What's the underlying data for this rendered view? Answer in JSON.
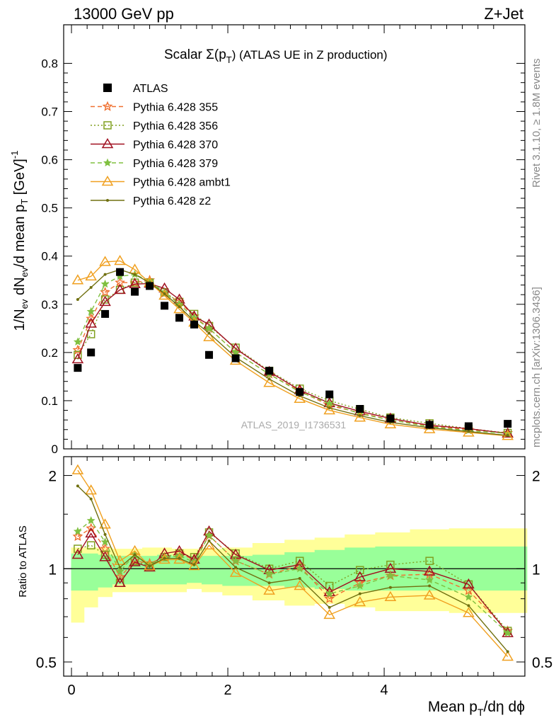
{
  "header": {
    "left": "13000 GeV pp",
    "right": "Z+Jet"
  },
  "title": {
    "main": "Scalar Σ(p",
    "sub": "T",
    "rest": ") (ATLAS UE in Z production)"
  },
  "side_text": {
    "rivet": "Rivet 3.1.10, ≥ 1.8M events",
    "mcplots": "mcplots.cern.ch [arXiv:1306.3436]"
  },
  "watermark": "ATLAS_2019_I1736531",
  "axes": {
    "ylabel_main": "1/N_ev dN_ev/d mean p_T [GeV]^-1",
    "ylabel_ratio": "Ratio to ATLAS",
    "xlabel": "Mean p_T/dη dϕ",
    "main_yticks": [
      "0",
      "0.1",
      "0.2",
      "0.3",
      "0.4",
      "0.5",
      "0.6",
      "0.7",
      "0.8"
    ],
    "ratio_yticks": [
      "0.5",
      "1",
      "2"
    ],
    "xticks": [
      "0",
      "2",
      "4"
    ]
  },
  "legend": [
    {
      "label": "ATLAS",
      "color": "#000000",
      "marker": "square-filled"
    },
    {
      "label": "Pythia 6.428 355",
      "color": "#f07030",
      "marker": "star-open",
      "dash": "dashed"
    },
    {
      "label": "Pythia 6.428 356",
      "color": "#80a020",
      "marker": "square-open",
      "dash": "dotted"
    },
    {
      "label": "Pythia 6.428 370",
      "color": "#a01020",
      "marker": "triangle-open",
      "dash": "solid"
    },
    {
      "label": "Pythia 6.428 379",
      "color": "#80c040",
      "marker": "star-filled",
      "dash": "dashed"
    },
    {
      "label": "Pythia 6.428 ambt1",
      "color": "#f0a020",
      "marker": "triangle-open",
      "dash": "solid"
    },
    {
      "label": "Pythia 6.428 z2",
      "color": "#707010",
      "marker": "dot",
      "dash": "solid"
    }
  ],
  "chart_data": {
    "type": "line",
    "x": [
      0.08,
      0.25,
      0.43,
      0.62,
      0.81,
      1.0,
      1.19,
      1.38,
      1.57,
      1.76,
      2.1,
      2.53,
      2.92,
      3.3,
      3.69,
      4.08,
      4.58,
      5.08,
      5.58
    ],
    "xlim": [
      -0.1,
      5.8
    ],
    "ylim_main": [
      0,
      0.88
    ],
    "ylim_ratio": [
      0.45,
      2.3
    ],
    "ratio_scale": "log",
    "data": {
      "name": "ATLAS",
      "values": [
        0.168,
        0.2,
        0.28,
        0.367,
        0.326,
        0.338,
        0.297,
        0.272,
        0.258,
        0.195,
        0.188,
        0.162,
        0.118,
        0.113,
        0.083,
        0.063,
        0.05,
        0.047,
        0.052
      ]
    },
    "series": [
      {
        "name": "Pythia 6.428 355",
        "values": [
          0.205,
          0.27,
          0.325,
          0.345,
          0.345,
          0.35,
          0.323,
          0.305,
          0.275,
          0.25,
          0.2,
          0.155,
          0.12,
          0.09,
          0.075,
          0.06,
          0.048,
          0.04,
          0.033
        ]
      },
      {
        "name": "Pythia 6.428 356",
        "values": [
          0.195,
          0.238,
          0.31,
          0.33,
          0.345,
          0.345,
          0.325,
          0.305,
          0.28,
          0.255,
          0.21,
          0.162,
          0.125,
          0.1,
          0.082,
          0.065,
          0.053,
          0.042,
          0.033
        ]
      },
      {
        "name": "Pythia 6.428 370",
        "values": [
          0.186,
          0.26,
          0.305,
          0.33,
          0.342,
          0.343,
          0.333,
          0.31,
          0.275,
          0.258,
          0.208,
          0.16,
          0.122,
          0.095,
          0.078,
          0.063,
          0.049,
          0.042,
          0.032
        ]
      },
      {
        "name": "Pythia 6.428 379",
        "values": [
          0.222,
          0.285,
          0.342,
          0.358,
          0.362,
          0.348,
          0.325,
          0.3,
          0.272,
          0.25,
          0.2,
          0.155,
          0.118,
          0.094,
          0.073,
          0.06,
          0.046,
          0.038,
          0.032
        ]
      },
      {
        "name": "Pythia 6.428 ambt1",
        "values": [
          0.35,
          0.358,
          0.388,
          0.39,
          0.372,
          0.345,
          0.318,
          0.29,
          0.262,
          0.232,
          0.183,
          0.137,
          0.104,
          0.08,
          0.065,
          0.051,
          0.041,
          0.034,
          0.027
        ]
      },
      {
        "name": "Pythia 6.428 z2",
        "values": [
          0.31,
          0.335,
          0.362,
          0.372,
          0.362,
          0.345,
          0.322,
          0.295,
          0.265,
          0.24,
          0.19,
          0.145,
          0.11,
          0.085,
          0.069,
          0.055,
          0.044,
          0.036,
          0.028
        ]
      }
    ],
    "ratio_series": [
      {
        "name": "Pythia 6.428 355",
        "values": [
          1.27,
          1.35,
          1.16,
          0.94,
          1.06,
          1.04,
          1.09,
          1.12,
          1.07,
          1.28,
          1.06,
          0.96,
          1.02,
          0.8,
          0.9,
          0.95,
          0.96,
          0.85,
          0.63
        ]
      },
      {
        "name": "Pythia 6.428 356",
        "values": [
          1.16,
          1.19,
          1.11,
          0.9,
          1.06,
          1.02,
          1.09,
          1.12,
          1.09,
          1.31,
          1.12,
          1.0,
          1.06,
          0.88,
          0.99,
          1.03,
          1.06,
          0.89,
          0.63
        ]
      },
      {
        "name": "Pythia 6.428 370",
        "values": [
          1.11,
          1.3,
          1.09,
          0.9,
          1.05,
          1.01,
          1.12,
          1.14,
          1.07,
          1.32,
          1.11,
          0.99,
          1.03,
          0.84,
          0.94,
          1.0,
          0.98,
          0.89,
          0.62
        ]
      },
      {
        "name": "Pythia 6.428 379",
        "values": [
          1.32,
          1.43,
          1.22,
          0.98,
          1.11,
          1.03,
          1.09,
          1.1,
          1.05,
          1.28,
          1.06,
          0.96,
          1.0,
          0.83,
          0.88,
          0.95,
          0.92,
          0.81,
          0.62
        ]
      },
      {
        "name": "Pythia 6.428 ambt1",
        "values": [
          2.08,
          1.79,
          1.39,
          1.06,
          1.14,
          1.02,
          1.07,
          1.07,
          1.02,
          1.19,
          0.97,
          0.85,
          0.88,
          0.71,
          0.78,
          0.81,
          0.82,
          0.72,
          0.52
        ]
      },
      {
        "name": "Pythia 6.428 z2",
        "values": [
          1.85,
          1.68,
          1.29,
          1.01,
          1.11,
          1.02,
          1.08,
          1.08,
          1.03,
          1.23,
          1.01,
          0.9,
          0.93,
          0.75,
          0.83,
          0.87,
          0.88,
          0.76,
          0.54
        ]
      }
    ],
    "band_inner": [
      [
        0.85,
        1.12
      ],
      [
        0.85,
        1.12
      ],
      [
        0.87,
        1.11
      ],
      [
        0.89,
        1.1
      ],
      [
        0.89,
        1.1
      ],
      [
        0.89,
        1.1
      ],
      [
        0.89,
        1.11
      ],
      [
        0.89,
        1.1
      ],
      [
        0.9,
        1.1
      ],
      [
        0.89,
        1.1
      ],
      [
        0.88,
        1.1
      ],
      [
        0.88,
        1.11
      ],
      [
        0.87,
        1.13
      ],
      [
        0.86,
        1.15
      ],
      [
        0.85,
        1.17
      ],
      [
        0.85,
        1.18
      ],
      [
        0.85,
        1.18
      ],
      [
        0.85,
        1.18
      ],
      [
        0.85,
        1.18
      ]
    ],
    "band_outer": [
      [
        0.67,
        1.17
      ],
      [
        0.75,
        1.17
      ],
      [
        0.81,
        1.17
      ],
      [
        0.84,
        1.16
      ],
      [
        0.84,
        1.16
      ],
      [
        0.84,
        1.17
      ],
      [
        0.84,
        1.17
      ],
      [
        0.84,
        1.16
      ],
      [
        0.86,
        1.16
      ],
      [
        0.84,
        1.16
      ],
      [
        0.82,
        1.17
      ],
      [
        0.79,
        1.21
      ],
      [
        0.76,
        1.24
      ],
      [
        0.77,
        1.26
      ],
      [
        0.75,
        1.29
      ],
      [
        0.73,
        1.31
      ],
      [
        0.73,
        1.34
      ],
      [
        0.72,
        1.35
      ],
      [
        0.72,
        1.35
      ]
    ]
  }
}
